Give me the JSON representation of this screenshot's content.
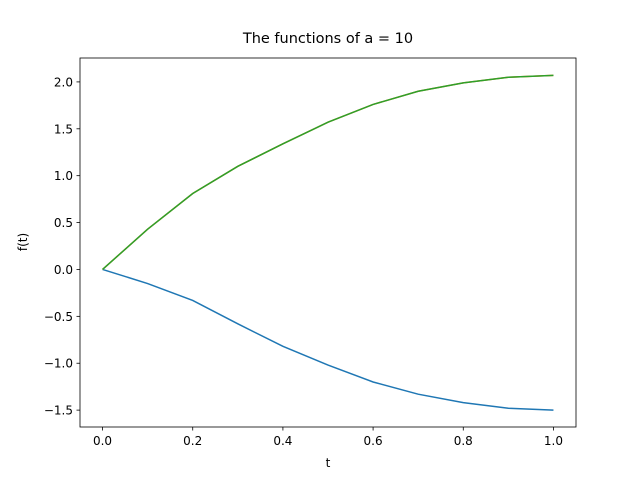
{
  "chart_data": {
    "type": "line",
    "title": "The functions of a = 10",
    "xlabel": "t",
    "ylabel": "f(t)",
    "x": [
      0,
      0.1,
      0.2,
      0.3,
      0.4,
      0.5,
      0.6,
      0.7,
      0.8,
      0.9,
      1.0
    ],
    "series": [
      {
        "color": "#1f77b4",
        "values": [
          0,
          -0.15,
          -0.33,
          -0.58,
          -0.82,
          -1.02,
          -1.2,
          -1.33,
          -1.42,
          -1.48,
          -1.5
        ]
      },
      {
        "color": "#ff7f0e",
        "values": [
          0,
          0.43,
          0.81,
          1.1,
          1.34,
          1.57,
          1.76,
          1.9,
          1.99,
          2.05,
          2.07
        ]
      },
      {
        "color": "#2ca02c",
        "values": [
          0,
          0.43,
          0.81,
          1.1,
          1.34,
          1.57,
          1.76,
          1.9,
          1.99,
          2.05,
          2.07
        ]
      }
    ],
    "xlim": [
      -0.05,
      1.05
    ],
    "xticks": [
      {
        "value": 0,
        "label": "0.0"
      },
      0.2,
      0.4,
      0.6,
      0.8,
      {
        "value": 1,
        "label": "1.0"
      }
    ],
    "ylim": [
      -1.68,
      2.255
    ],
    "yticks": [
      {
        "value": -1.5,
        "label": "−1.5"
      },
      {
        "value": -1,
        "label": "−1.0"
      },
      {
        "value": -0.5,
        "label": "−0.5"
      },
      {
        "value": 0,
        "label": "0.0"
      },
      0.5,
      {
        "value": 1,
        "label": "1.0"
      },
      1.5,
      {
        "value": 2,
        "label": "2.0"
      }
    ],
    "grid": false
  }
}
